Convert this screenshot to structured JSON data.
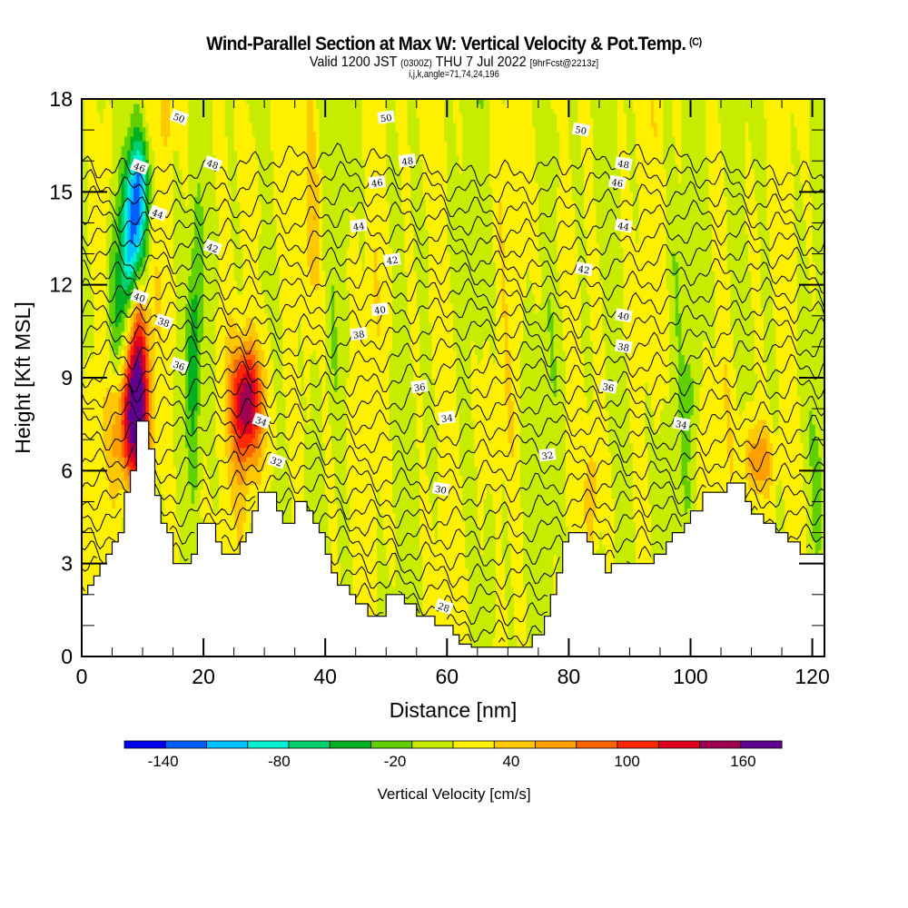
{
  "header": {
    "title": "Wind-Parallel Section at Max W: Vertical Velocity & Pot.Temp.",
    "copyright": "(C)",
    "valid_prefix": "Valid 1200 JST",
    "valid_utc": "(0300Z)",
    "valid_date": "THU 7 Jul 2022",
    "forecast": "[9hrFcst@2213z]",
    "indices": "i,j,k,angle=71,74,24,196"
  },
  "chart_data": {
    "type": "heatmap",
    "title": "Wind-Parallel Section at Max W: Vertical Velocity & Pot.Temp.",
    "xlabel": "Distance [nm]",
    "ylabel": "Height [Kft MSL]",
    "xlim": [
      0,
      122
    ],
    "ylim": [
      0,
      18
    ],
    "xticks": [
      0,
      20,
      40,
      60,
      80,
      100,
      120
    ],
    "xticks_minor_step": 5,
    "yticks": [
      0,
      3,
      6,
      9,
      12,
      15,
      18
    ],
    "yticks_minor_step": 1,
    "colorbar": {
      "title": "Vertical Velocity [cm/s]",
      "bounds": [
        -160,
        -140,
        -120,
        -100,
        -80,
        -60,
        -40,
        -20,
        0,
        20,
        40,
        60,
        80,
        100,
        120,
        140,
        160,
        180
      ],
      "tick_labels": [
        "-140",
        "-80",
        "-20",
        "40",
        "100",
        "160"
      ],
      "tick_values": [
        -140,
        -80,
        -20,
        40,
        100,
        160
      ],
      "colors": [
        "#0000f0",
        "#0060ff",
        "#00c0ff",
        "#00f0d0",
        "#00d070",
        "#00b020",
        "#60d000",
        "#c8ec00",
        "#fff000",
        "#ffc800",
        "#ffa000",
        "#ff6400",
        "#ff2800",
        "#e00020",
        "#a00050",
        "#600090"
      ]
    },
    "vertical_velocity_features": [
      {
        "name": "updraft-core-west",
        "x_nm": 9,
        "y_kft": 9.5,
        "peak_cms": 150,
        "width_nm": 2.0,
        "height_kft": 3.2
      },
      {
        "name": "updraft-low-west",
        "x_nm": 8,
        "y_kft": 7.5,
        "peak_cms": 90,
        "width_nm": 3.0,
        "height_kft": 2.0
      },
      {
        "name": "downdraft-core-west",
        "x_nm": 8.5,
        "y_kft": 13.5,
        "peak_cms": -130,
        "width_nm": 2.0,
        "height_kft": 2.0
      },
      {
        "name": "downdraft-upper-west",
        "x_nm": 9.5,
        "y_kft": 15.5,
        "peak_cms": -80,
        "width_nm": 2.0,
        "height_kft": 1.5
      },
      {
        "name": "downdraft-mid-west",
        "x_nm": 7.5,
        "y_kft": 11,
        "peak_cms": -70,
        "width_nm": 2.5,
        "height_kft": 2.5
      },
      {
        "name": "downdraft-column-18nm",
        "x_nm": 18.5,
        "y_kft": 10,
        "peak_cms": -60,
        "width_nm": 1.0,
        "height_kft": 3.0
      },
      {
        "name": "updraft-27nm",
        "x_nm": 27,
        "y_kft": 8.3,
        "peak_cms": 100,
        "width_nm": 2.2,
        "height_kft": 1.6
      },
      {
        "name": "updraft-27nm-halo",
        "x_nm": 27.5,
        "y_kft": 7.5,
        "peak_cms": 55,
        "width_nm": 3.0,
        "height_kft": 2.6
      },
      {
        "name": "updraft-38nm",
        "x_nm": 38,
        "y_kft": 14,
        "peak_cms": 35,
        "width_nm": 1.5,
        "height_kft": 3.5
      },
      {
        "name": "updraft-110nm",
        "x_nm": 111,
        "y_kft": 6.3,
        "peak_cms": 65,
        "width_nm": 2.5,
        "height_kft": 1.2
      },
      {
        "name": "updraft-84nm",
        "x_nm": 84,
        "y_kft": 5.5,
        "peak_cms": 35,
        "width_nm": 1.0,
        "height_kft": 2.0
      },
      {
        "name": "updraft-4nm-upper",
        "x_nm": 4,
        "y_kft": 16,
        "peak_cms": 30,
        "width_nm": 1.0,
        "height_kft": 2.0
      },
      {
        "name": "updraft-14nm-upper",
        "x_nm": 14,
        "y_kft": 17.5,
        "peak_cms": 30,
        "width_nm": 1.0,
        "height_kft": 1.0
      },
      {
        "name": "downdraft-100nm",
        "x_nm": 100,
        "y_kft": 8.5,
        "peak_cms": -30,
        "width_nm": 1.0,
        "height_kft": 1.5
      },
      {
        "name": "downdraft-67nm",
        "x_nm": 67,
        "y_kft": 2.5,
        "peak_cms": -30,
        "width_nm": 1.0,
        "height_kft": 2.0
      },
      {
        "name": "downdraft-120nm",
        "x_nm": 121,
        "y_kft": 5.5,
        "peak_cms": -30,
        "width_nm": 1.0,
        "height_kft": 2.0
      }
    ],
    "potential_temperature_contours": {
      "units": "C",
      "interval": 1,
      "labels": [
        {
          "value": "50",
          "x_nm": 16,
          "y_kft": 17.4
        },
        {
          "value": "50",
          "x_nm": 50,
          "y_kft": 17.4
        },
        {
          "value": "50",
          "x_nm": 82,
          "y_kft": 17.0
        },
        {
          "value": "48",
          "x_nm": 21.5,
          "y_kft": 15.9
        },
        {
          "value": "48",
          "x_nm": 53.5,
          "y_kft": 16.0
        },
        {
          "value": "48",
          "x_nm": 89,
          "y_kft": 15.9
        },
        {
          "value": "46",
          "x_nm": 9.5,
          "y_kft": 15.8
        },
        {
          "value": "46",
          "x_nm": 48.5,
          "y_kft": 15.3
        },
        {
          "value": "46",
          "x_nm": 88,
          "y_kft": 15.3
        },
        {
          "value": "44",
          "x_nm": 12.5,
          "y_kft": 14.3
        },
        {
          "value": "44",
          "x_nm": 45.5,
          "y_kft": 13.9
        },
        {
          "value": "44",
          "x_nm": 89,
          "y_kft": 13.9
        },
        {
          "value": "42",
          "x_nm": 21.5,
          "y_kft": 13.2
        },
        {
          "value": "42",
          "x_nm": 51,
          "y_kft": 12.8
        },
        {
          "value": "42",
          "x_nm": 82.5,
          "y_kft": 12.5
        },
        {
          "value": "40",
          "x_nm": 9.5,
          "y_kft": 11.6
        },
        {
          "value": "40",
          "x_nm": 49,
          "y_kft": 11.2
        },
        {
          "value": "40",
          "x_nm": 89,
          "y_kft": 11.0
        },
        {
          "value": "38",
          "x_nm": 13.5,
          "y_kft": 10.8
        },
        {
          "value": "38",
          "x_nm": 45.5,
          "y_kft": 10.4
        },
        {
          "value": "38",
          "x_nm": 89,
          "y_kft": 10.0
        },
        {
          "value": "36",
          "x_nm": 16,
          "y_kft": 9.4
        },
        {
          "value": "36",
          "x_nm": 55.5,
          "y_kft": 8.7
        },
        {
          "value": "36",
          "x_nm": 86.5,
          "y_kft": 8.7
        },
        {
          "value": "34",
          "x_nm": 29.5,
          "y_kft": 7.6
        },
        {
          "value": "34",
          "x_nm": 60,
          "y_kft": 7.7
        },
        {
          "value": "34",
          "x_nm": 98.5,
          "y_kft": 7.5
        },
        {
          "value": "32",
          "x_nm": 32,
          "y_kft": 6.3
        },
        {
          "value": "32",
          "x_nm": 76.5,
          "y_kft": 6.5
        },
        {
          "value": "30",
          "x_nm": 59,
          "y_kft": 5.4
        },
        {
          "value": "28",
          "x_nm": 59.5,
          "y_kft": 1.6
        }
      ]
    },
    "terrain_profile_kft": [
      [
        0,
        2.0
      ],
      [
        1,
        2.0
      ],
      [
        1,
        2.3
      ],
      [
        2,
        2.3
      ],
      [
        2,
        2.6
      ],
      [
        3,
        2.6
      ],
      [
        3,
        3.0
      ],
      [
        4,
        3.0
      ],
      [
        4,
        3.3
      ],
      [
        5,
        3.3
      ],
      [
        5,
        3.7
      ],
      [
        6,
        3.7
      ],
      [
        6,
        4.0
      ],
      [
        7,
        4.0
      ],
      [
        7,
        5.3
      ],
      [
        8,
        5.3
      ],
      [
        8,
        6.0
      ],
      [
        9,
        6.0
      ],
      [
        9,
        7.6
      ],
      [
        11,
        7.6
      ],
      [
        11,
        6.7
      ],
      [
        12,
        6.7
      ],
      [
        12,
        5.2
      ],
      [
        13,
        5.2
      ],
      [
        13,
        4.3
      ],
      [
        14,
        4.3
      ],
      [
        14,
        4.0
      ],
      [
        15,
        4.0
      ],
      [
        15,
        3.0
      ],
      [
        18,
        3.0
      ],
      [
        18,
        3.3
      ],
      [
        19,
        3.3
      ],
      [
        19,
        4.3
      ],
      [
        22,
        4.3
      ],
      [
        22,
        3.7
      ],
      [
        23,
        3.7
      ],
      [
        23,
        3.3
      ],
      [
        26,
        3.3
      ],
      [
        26,
        3.7
      ],
      [
        27,
        3.7
      ],
      [
        27,
        4.0
      ],
      [
        28,
        4.0
      ],
      [
        28,
        4.7
      ],
      [
        29,
        4.7
      ],
      [
        29,
        5.3
      ],
      [
        32,
        5.3
      ],
      [
        32,
        4.7
      ],
      [
        33,
        4.7
      ],
      [
        33,
        4.3
      ],
      [
        35,
        4.3
      ],
      [
        35,
        5.0
      ],
      [
        37,
        5.0
      ],
      [
        37,
        4.7
      ],
      [
        38,
        4.7
      ],
      [
        38,
        4.3
      ],
      [
        39,
        4.3
      ],
      [
        39,
        4.0
      ],
      [
        40,
        4.0
      ],
      [
        40,
        3.3
      ],
      [
        41,
        3.3
      ],
      [
        41,
        2.7
      ],
      [
        42,
        2.7
      ],
      [
        42,
        2.3
      ],
      [
        44,
        2.3
      ],
      [
        44,
        2.0
      ],
      [
        45,
        2.0
      ],
      [
        45,
        1.7
      ],
      [
        47,
        1.7
      ],
      [
        47,
        1.3
      ],
      [
        50,
        1.3
      ],
      [
        50,
        2.0
      ],
      [
        53,
        2.0
      ],
      [
        53,
        1.7
      ],
      [
        55,
        1.7
      ],
      [
        55,
        1.3
      ],
      [
        58,
        1.3
      ],
      [
        58,
        1.0
      ],
      [
        61,
        1.0
      ],
      [
        61,
        0.7
      ],
      [
        62,
        0.7
      ],
      [
        62,
        0.4
      ],
      [
        64,
        0.4
      ],
      [
        64,
        0.3
      ],
      [
        74,
        0.3
      ],
      [
        74,
        0.7
      ],
      [
        76,
        0.7
      ],
      [
        76,
        1.3
      ],
      [
        77,
        1.3
      ],
      [
        77,
        2.0
      ],
      [
        78,
        2.0
      ],
      [
        78,
        2.7
      ],
      [
        79,
        2.7
      ],
      [
        79,
        3.7
      ],
      [
        80,
        3.7
      ],
      [
        80,
        4.0
      ],
      [
        83,
        4.0
      ],
      [
        83,
        3.7
      ],
      [
        84,
        3.7
      ],
      [
        84,
        3.3
      ],
      [
        86,
        3.3
      ],
      [
        86,
        2.7
      ],
      [
        87,
        2.7
      ],
      [
        87,
        3.0
      ],
      [
        94,
        3.0
      ],
      [
        94,
        3.3
      ],
      [
        96,
        3.3
      ],
      [
        96,
        3.7
      ],
      [
        97,
        3.7
      ],
      [
        97,
        4.0
      ],
      [
        99,
        4.0
      ],
      [
        99,
        4.3
      ],
      [
        100,
        4.3
      ],
      [
        100,
        4.7
      ],
      [
        102,
        4.7
      ],
      [
        102,
        5.3
      ],
      [
        106,
        5.3
      ],
      [
        106,
        5.6
      ],
      [
        109,
        5.6
      ],
      [
        109,
        5.0
      ],
      [
        110,
        5.0
      ],
      [
        110,
        4.6
      ],
      [
        112,
        4.6
      ],
      [
        112,
        4.3
      ],
      [
        114,
        4.3
      ],
      [
        114,
        4.0
      ],
      [
        116,
        4.0
      ],
      [
        116,
        3.7
      ],
      [
        118,
        3.7
      ],
      [
        118,
        3.3
      ],
      [
        120,
        3.3
      ],
      [
        120,
        3.3
      ],
      [
        122,
        3.3
      ]
    ]
  }
}
